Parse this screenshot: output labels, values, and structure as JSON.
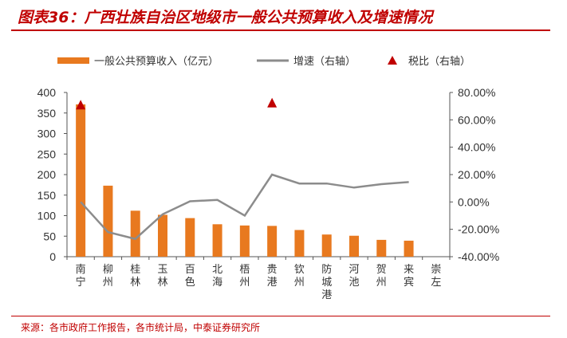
{
  "figure_title": "图表36：广西壮族自治区地级市一般公共预算收入及增速情况",
  "source": "来源：各市政府工作报告，各市统计局，中泰证券研究所",
  "colors": {
    "bar": "#e8791f",
    "line": "#8c8c8c",
    "marker": "#c00000",
    "accent": "#c00000"
  },
  "chart_data": {
    "type": "bar",
    "categories": [
      "南宁",
      "柳州",
      "桂林",
      "玉林",
      "百色",
      "北海",
      "梧州",
      "贵港",
      "钦州",
      "防城港",
      "河池",
      "贺州",
      "来宾",
      "崇左"
    ],
    "series": [
      {
        "name": "一般公共预算收入（亿元）",
        "kind": "bar",
        "axis": "left",
        "values": [
          371,
          173,
          112,
          102,
          94,
          79,
          76,
          75,
          65,
          54,
          51,
          41,
          39,
          null
        ]
      },
      {
        "name": "增速（右轴）",
        "kind": "line",
        "axis": "right",
        "values": [
          0.0,
          -22.0,
          -27.0,
          -9.0,
          0.5,
          1.5,
          -10.0,
          20.0,
          13.5,
          13.5,
          10.5,
          13.0,
          14.5,
          null
        ]
      },
      {
        "name": "税比（右轴）",
        "kind": "marker",
        "axis": "right",
        "values": [
          70.5,
          null,
          null,
          null,
          null,
          null,
          null,
          72.0,
          null,
          null,
          null,
          null,
          null,
          null
        ]
      }
    ],
    "y_left": {
      "min": 0,
      "max": 400,
      "ticks": [
        "0",
        "50",
        "100",
        "150",
        "200",
        "250",
        "300",
        "350",
        "400"
      ]
    },
    "y_right": {
      "min": -40,
      "max": 80,
      "ticks": [
        "-40.00%",
        "-20.00%",
        "0.00%",
        "20.00%",
        "40.00%",
        "60.00%",
        "80.00%"
      ]
    },
    "grid": false,
    "legend_position": "top"
  }
}
